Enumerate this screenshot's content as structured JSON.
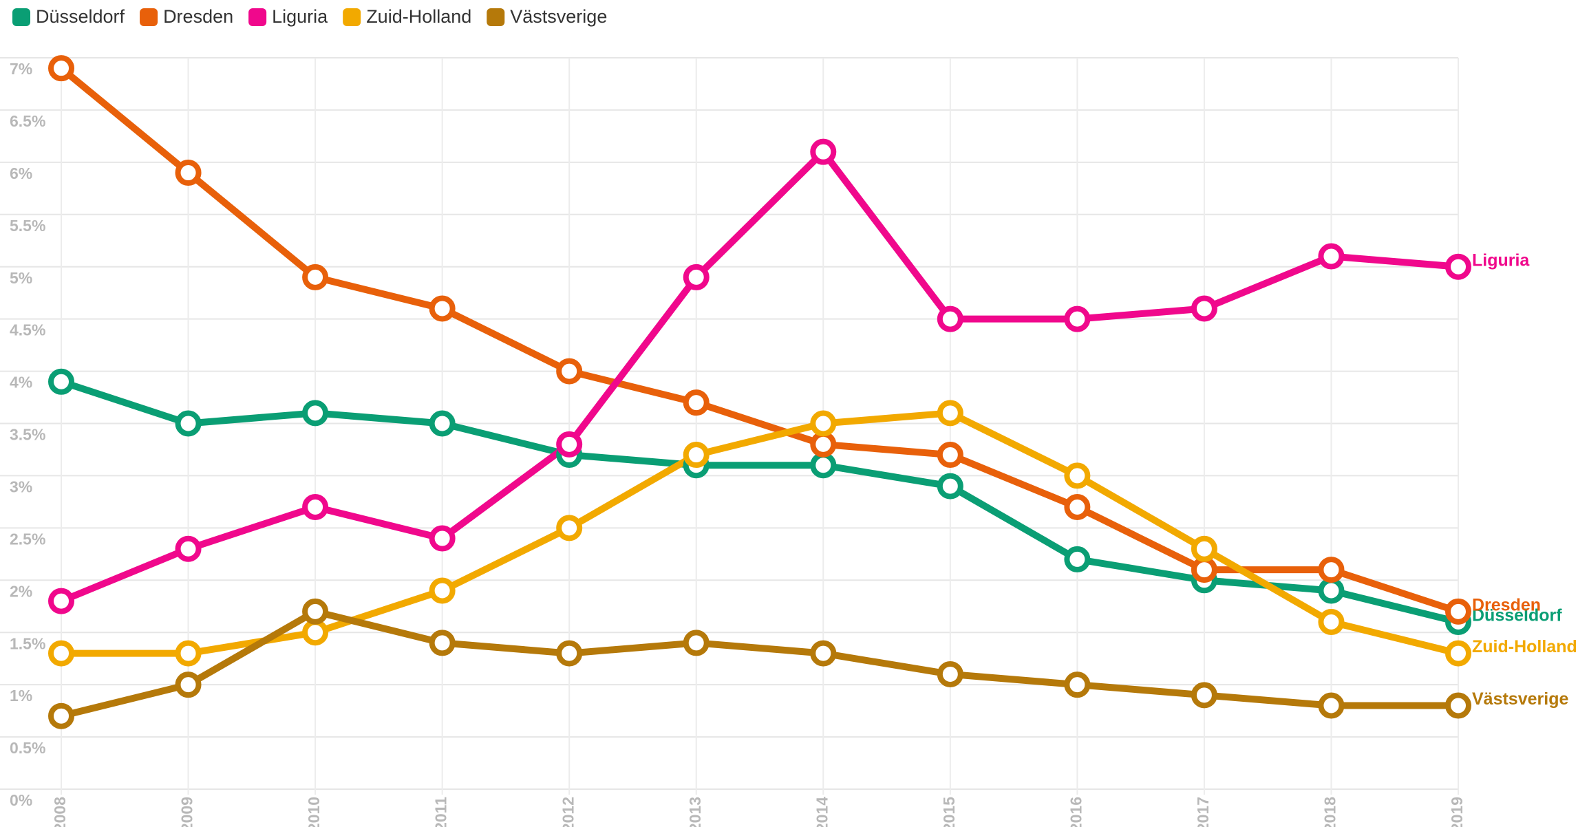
{
  "chart_data": {
    "type": "line",
    "categories": [
      "2008",
      "2009",
      "2010",
      "2011",
      "2012",
      "2013",
      "2014",
      "2015",
      "2016",
      "2017",
      "2018",
      "2019"
    ],
    "series": [
      {
        "name": "Düsseldorf",
        "color": "#0a9e74",
        "values": [
          3.9,
          3.5,
          3.6,
          3.5,
          3.2,
          3.1,
          3.1,
          2.9,
          2.2,
          2.0,
          1.9,
          1.6
        ]
      },
      {
        "name": "Dresden",
        "color": "#e8600a",
        "values": [
          6.9,
          5.9,
          4.9,
          4.6,
          4.0,
          3.7,
          3.3,
          3.2,
          2.7,
          2.1,
          2.1,
          1.7
        ]
      },
      {
        "name": "Liguria",
        "color": "#f0088c",
        "values": [
          1.8,
          2.3,
          2.7,
          2.4,
          3.3,
          4.9,
          6.1,
          4.5,
          4.5,
          4.6,
          5.1,
          5.0
        ]
      },
      {
        "name": "Zuid-Holland",
        "color": "#f2a900",
        "values": [
          1.3,
          1.3,
          1.5,
          1.9,
          2.5,
          3.2,
          3.5,
          3.6,
          3.0,
          2.3,
          1.6,
          1.3
        ]
      },
      {
        "name": "Västsverige",
        "color": "#b5790a",
        "values": [
          0.7,
          1.0,
          1.7,
          1.4,
          1.3,
          1.4,
          1.3,
          1.1,
          1.0,
          0.9,
          0.8,
          0.8
        ]
      }
    ],
    "ylim": [
      0,
      7
    ],
    "yticks": [
      {
        "value": 0,
        "label": "0%"
      },
      {
        "value": 0.5,
        "label": "0.5%"
      },
      {
        "value": 1,
        "label": "1%"
      },
      {
        "value": 1.5,
        "label": "1.5%"
      },
      {
        "value": 2,
        "label": "2%"
      },
      {
        "value": 2.5,
        "label": "2.5%"
      },
      {
        "value": 3,
        "label": "3%"
      },
      {
        "value": 3.5,
        "label": "3.5%"
      },
      {
        "value": 4,
        "label": "4%"
      },
      {
        "value": 4.5,
        "label": "4.5%"
      },
      {
        "value": 5,
        "label": "5%"
      },
      {
        "value": 5.5,
        "label": "5.5%"
      },
      {
        "value": 6,
        "label": "6%"
      },
      {
        "value": 6.5,
        "label": "6.5%"
      },
      {
        "value": 7,
        "label": "7%"
      }
    ],
    "grid": true,
    "legend": "top-left"
  }
}
